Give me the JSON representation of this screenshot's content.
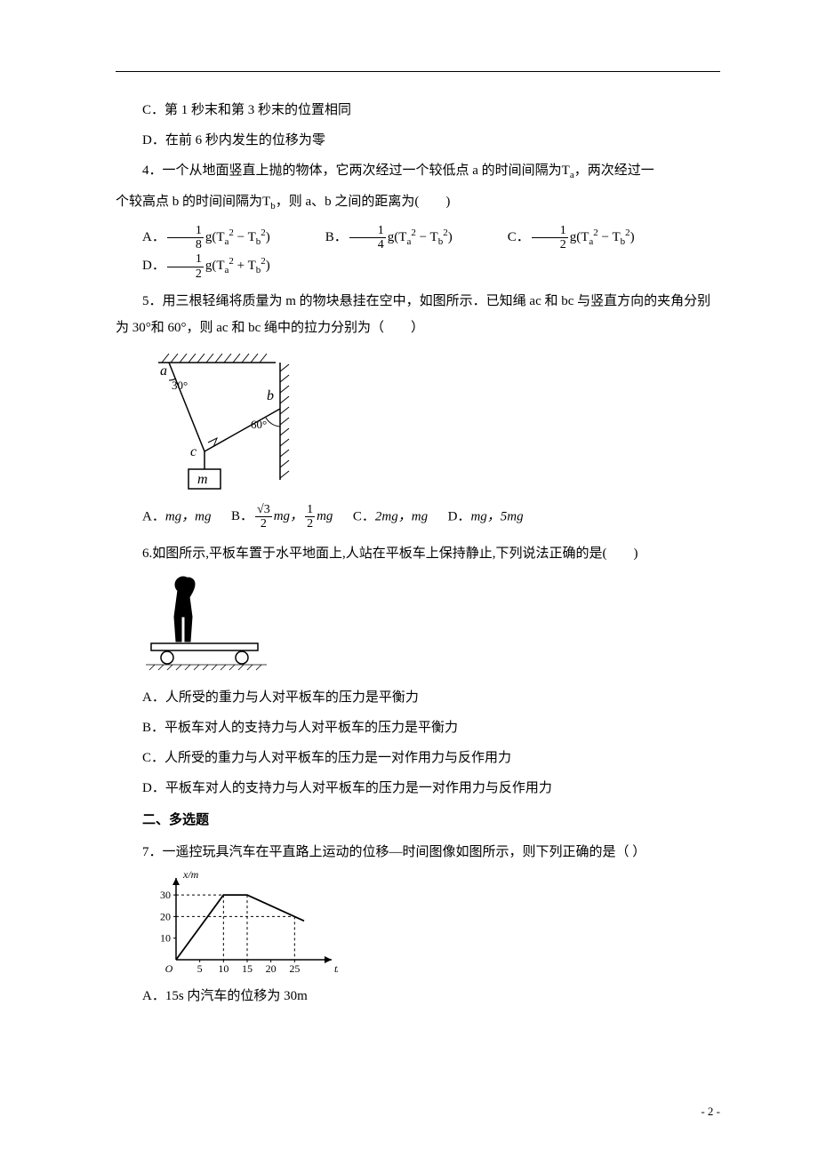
{
  "q3": {
    "optC": "C．第 1 秒末和第 3 秒末的位置相同",
    "optD": "D．在前 6 秒内发生的位移为零"
  },
  "q4": {
    "stem_a": "4．一个从地面竖直上抛的物体，它两次经过一个较低点 a 的时间间隔为",
    "stem_b": "，两次经过一",
    "stem_c": "个较高点 b 的时间间隔为",
    "stem_d": "，则 a、b 之间的距离为(　　)",
    "Ta": "T",
    "Tb": "T",
    "a_sub": "a",
    "b_sub": "b",
    "optA_label": "A．",
    "optB_label": "B．",
    "optC_label": "C．",
    "optD_label": "D．",
    "gpart": "g(T",
    "minus": " − T",
    "plus": " + T",
    "close": ")",
    "sq": "2"
  },
  "q5": {
    "stem": "5．用三根轻绳将质量为 m 的物块悬挂在空中，如图所示．已知绳 ac 和 bc 与竖直方向的夹角分别为 30°和 60°，则 ac 和 bc 绳中的拉力分别为（　　）",
    "diagram": {
      "a_label": "a",
      "b_label": "b",
      "c_label": "c",
      "m_label": "m",
      "angle1": "30°",
      "angle2": "60°",
      "stroke": "#000000"
    },
    "optA_label": "A．",
    "optA_val": "mg，mg",
    "optB_label": "B．",
    "optB_val_mid": "mg，",
    "optB_val_end": "mg",
    "sqrt3": "√3",
    "optC_label": "C．",
    "optC_val": "2mg，mg",
    "optD_label": "D．",
    "optD_val": "mg，5mg"
  },
  "q6": {
    "stem": "6.如图所示,平板车置于水平地面上,人站在平板车上保持静止,下列说法正确的是(　　)",
    "optA": "A．人所受的重力与人对平板车的压力是平衡力",
    "optB": "B．平板车对人的支持力与人对平板车的压力是平衡力",
    "optC": "C．人所受的重力与人对平板车的压力是一对作用力与反作用力",
    "optD": "D．平板车对人的支持力与人对平板车的压力是一对作用力与反作用力"
  },
  "section2": "二、多选题",
  "q7": {
    "stem": "7．一遥控玩具汽车在平直路上运动的位移—时间图像如图所示，则下列正确的是（ ）",
    "chart": {
      "type": "line",
      "x_label": "t/s",
      "y_label": "x/m",
      "x_ticks": [
        0,
        5,
        10,
        15,
        20,
        25
      ],
      "y_ticks": [
        10,
        20,
        30
      ],
      "points": [
        [
          0,
          0
        ],
        [
          10,
          30
        ],
        [
          15,
          30
        ],
        [
          27,
          18
        ]
      ],
      "xlim": [
        0,
        30
      ],
      "ylim": [
        0,
        35
      ],
      "axis_color": "#000000",
      "line_color": "#000000",
      "dash_color": "#000000",
      "font_size": 12
    },
    "optA": "A．15s 内汽车的位移为 30m"
  },
  "footer": "- 2 -"
}
